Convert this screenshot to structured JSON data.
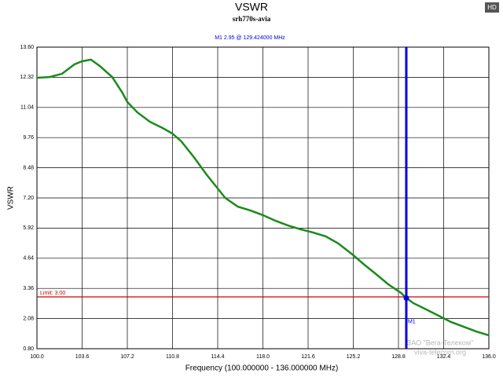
{
  "chart_data": {
    "type": "line",
    "title": "VSWR",
    "subtitle": "srh770s-avia",
    "x_label": "Frequency (100.000000 - 136.000000 MHz)",
    "y_label": "VSWR",
    "badge": "HD",
    "watermark": [
      "ЗАО \"Вега-Телеком\"",
      "viva-telecom.org"
    ],
    "color": "#1b8a1b",
    "grid": true,
    "x": [
      100.0,
      101.0,
      102.0,
      103.0,
      103.6,
      104.3,
      105.0,
      106.0,
      106.8,
      107.2,
      108.0,
      109.0,
      110.0,
      110.8,
      111.5,
      112.5,
      113.5,
      114.4,
      115.0,
      116.0,
      117.0,
      118.0,
      119.0,
      120.0,
      121.0,
      122.0,
      123.0,
      124.0,
      125.2,
      126.0,
      127.0,
      128.0,
      129.0,
      129.424,
      130.0,
      131.0,
      132.0,
      133.0,
      134.0,
      135.0,
      136.0
    ],
    "values": [
      12.3,
      12.33,
      12.47,
      12.87,
      13.0,
      13.07,
      12.8,
      12.33,
      11.67,
      11.27,
      10.83,
      10.43,
      10.17,
      9.93,
      9.6,
      8.93,
      8.2,
      7.6,
      7.2,
      6.83,
      6.67,
      6.47,
      6.23,
      6.03,
      5.87,
      5.73,
      5.57,
      5.27,
      4.77,
      4.4,
      3.97,
      3.53,
      3.17,
      2.95,
      2.73,
      2.47,
      2.2,
      1.93,
      1.73,
      1.53,
      1.37
    ],
    "xlim": [
      100,
      136
    ],
    "ylim": [
      0.8,
      13.6
    ],
    "xticks": [
      {
        "value": 100,
        "label": "100.0"
      },
      103.6,
      107.2,
      110.8,
      114.4,
      {
        "value": 118,
        "label": "118.0"
      },
      121.6,
      125.2,
      128.8,
      132.4,
      {
        "value": 136,
        "label": "136.0"
      }
    ],
    "yticks": [
      {
        "value": 0.8,
        "label": "0.80"
      },
      2.08,
      3.36,
      4.64,
      5.92,
      {
        "value": 7.2,
        "label": "7.20"
      },
      8.48,
      9.76,
      11.04,
      12.32,
      {
        "value": 13.6,
        "label": "13.60"
      }
    ],
    "limit": {
      "label": "Limit: 3.00",
      "value": 3,
      "color": "#d00000"
    },
    "marker": {
      "name": "M1",
      "text": "M1  2.95 @ 129.424000 MHz",
      "x": 129.424,
      "value": 2.95,
      "color": "#0000e0"
    }
  }
}
